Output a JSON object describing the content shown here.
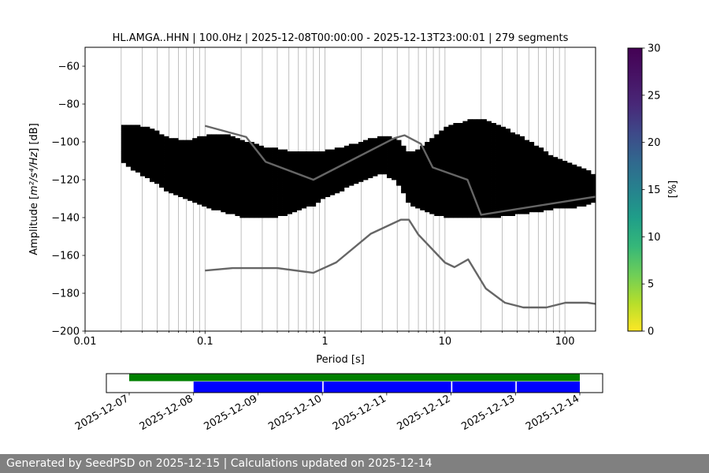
{
  "chart_data": [
    {
      "type": "heatmap",
      "title": "HL.AMGA..HHN | 100.0Hz | 2025-12-08T00:00:00 - 2025-12-13T23:00:01 | 279 segments",
      "xlabel": "Period [s]",
      "ylabel_main": "Amplitude [",
      "ylabel_math": "m²/s⁴/Hz",
      "ylabel_tail": "] [dB]",
      "x_scale": "log",
      "xlim": [
        0.01,
        180
      ],
      "ylim": [
        -200,
        -50
      ],
      "grid": true,
      "x_tick_labels": [
        "0.01",
        "0.1",
        "1",
        "10",
        "100"
      ],
      "x_tick_values": [
        0.01,
        0.1,
        1,
        10,
        100
      ],
      "y_tick_labels": [
        "−200",
        "−180",
        "−160",
        "−140",
        "−120",
        "−100",
        "−80",
        "−60"
      ],
      "y_tick_values": [
        -200,
        -180,
        -160,
        -140,
        -120,
        -100,
        -80,
        -60
      ],
      "colorbar": {
        "label": "[%]",
        "range": [
          0,
          30
        ],
        "tick_labels": [
          "0",
          "5",
          "10",
          "15",
          "20",
          "25",
          "30"
        ],
        "tick_values": [
          0,
          5,
          10,
          15,
          20,
          25,
          30
        ],
        "colormap": "viridis_r"
      },
      "psd_mode": {
        "period": [
          0.02,
          0.025,
          0.03,
          0.04,
          0.05,
          0.07,
          0.1,
          0.15,
          0.2,
          0.3,
          0.5,
          0.8,
          1,
          1.5,
          2,
          3,
          4,
          5,
          6,
          8,
          10,
          15,
          20,
          30,
          50,
          80,
          100,
          150,
          180
        ],
        "db": [
          -101,
          -103,
          -104,
          -107,
          -110,
          -114,
          -117,
          -119,
          -120,
          -121,
          -122,
          -122,
          -120,
          -115,
          -111,
          -107,
          -111,
          -121,
          -123,
          -125,
          -124,
          -125,
          -126,
          -126,
          -126,
          -126,
          -127,
          -127,
          -126
        ]
      },
      "psd_upper": {
        "period": [
          0.02,
          0.025,
          0.03,
          0.04,
          0.05,
          0.07,
          0.1,
          0.15,
          0.2,
          0.3,
          0.5,
          0.8,
          1,
          1.5,
          2,
          3,
          4,
          5,
          6,
          8,
          10,
          15,
          20,
          30,
          50,
          80,
          100,
          150,
          180
        ],
        "db": [
          -91,
          -91,
          -92,
          -95,
          -98,
          -100,
          -97,
          -96,
          -99,
          -103,
          -105,
          -106,
          -105,
          -103,
          -100,
          -97,
          -99,
          -106,
          -104,
          -98,
          -93,
          -89,
          -88,
          -92,
          -100,
          -108,
          -111,
          -115,
          -118
        ]
      },
      "psd_lower": {
        "period": [
          0.02,
          0.025,
          0.03,
          0.04,
          0.05,
          0.07,
          0.1,
          0.15,
          0.2,
          0.3,
          0.5,
          0.8,
          1,
          1.5,
          2,
          3,
          4,
          5,
          6,
          8,
          10,
          15,
          20,
          30,
          50,
          80,
          100,
          150,
          180
        ],
        "db": [
          -110,
          -114,
          -117,
          -122,
          -126,
          -130,
          -134,
          -137,
          -139,
          -140,
          -138,
          -133,
          -129,
          -124,
          -120,
          -116,
          -121,
          -132,
          -135,
          -138,
          -139,
          -140,
          -140,
          -139,
          -137,
          -135,
          -135,
          -133,
          -131
        ]
      },
      "nhnm": {
        "period": [
          0.1,
          0.22,
          0.32,
          0.8,
          3.8,
          4.6,
          6.3,
          7.9,
          15.4,
          20,
          354.8
        ],
        "db": [
          -91.5,
          -97.4,
          -110.5,
          -120.0,
          -98.0,
          -96.5,
          -101.0,
          -113.5,
          -120.0,
          -138.5,
          -126.0
        ]
      },
      "nlnm": {
        "period": [
          0.1,
          0.17,
          0.4,
          0.8,
          1.24,
          2.4,
          4.3,
          5.0,
          6.0,
          10.0,
          12.0,
          15.6,
          21.9,
          31.6,
          45.0,
          70.0,
          101.0,
          154.0,
          180.0
        ],
        "db": [
          -168.0,
          -166.7,
          -166.7,
          -169.2,
          -163.7,
          -148.6,
          -141.1,
          -141.1,
          -149.0,
          -163.8,
          -166.2,
          -162.1,
          -177.5,
          -185.0,
          -187.5,
          -187.5,
          -185.0,
          -185.0,
          -185.6
        ]
      }
    },
    {
      "type": "timeline",
      "date_labels": [
        "2025-12-07",
        "2025-12-08",
        "2025-12-09",
        "2025-12-10",
        "2025-12-11",
        "2025-12-12",
        "2025-12-13",
        "2025-12-14"
      ],
      "available_data": {
        "start_day": 0.0,
        "end_day": 7.0,
        "color": "#008000"
      },
      "processed_segments": [
        {
          "start_day": 1.0,
          "end_day": 3.0
        },
        {
          "start_day": 3.02,
          "end_day": 5.0
        },
        {
          "start_day": 5.02,
          "end_day": 6.0
        },
        {
          "start_day": 6.02,
          "end_day": 7.0
        }
      ],
      "segment_color": "#0000ff"
    }
  ],
  "footer": {
    "text": "Generated by SeedPSD on 2025-12-15 | Calculations updated on 2025-12-14"
  }
}
